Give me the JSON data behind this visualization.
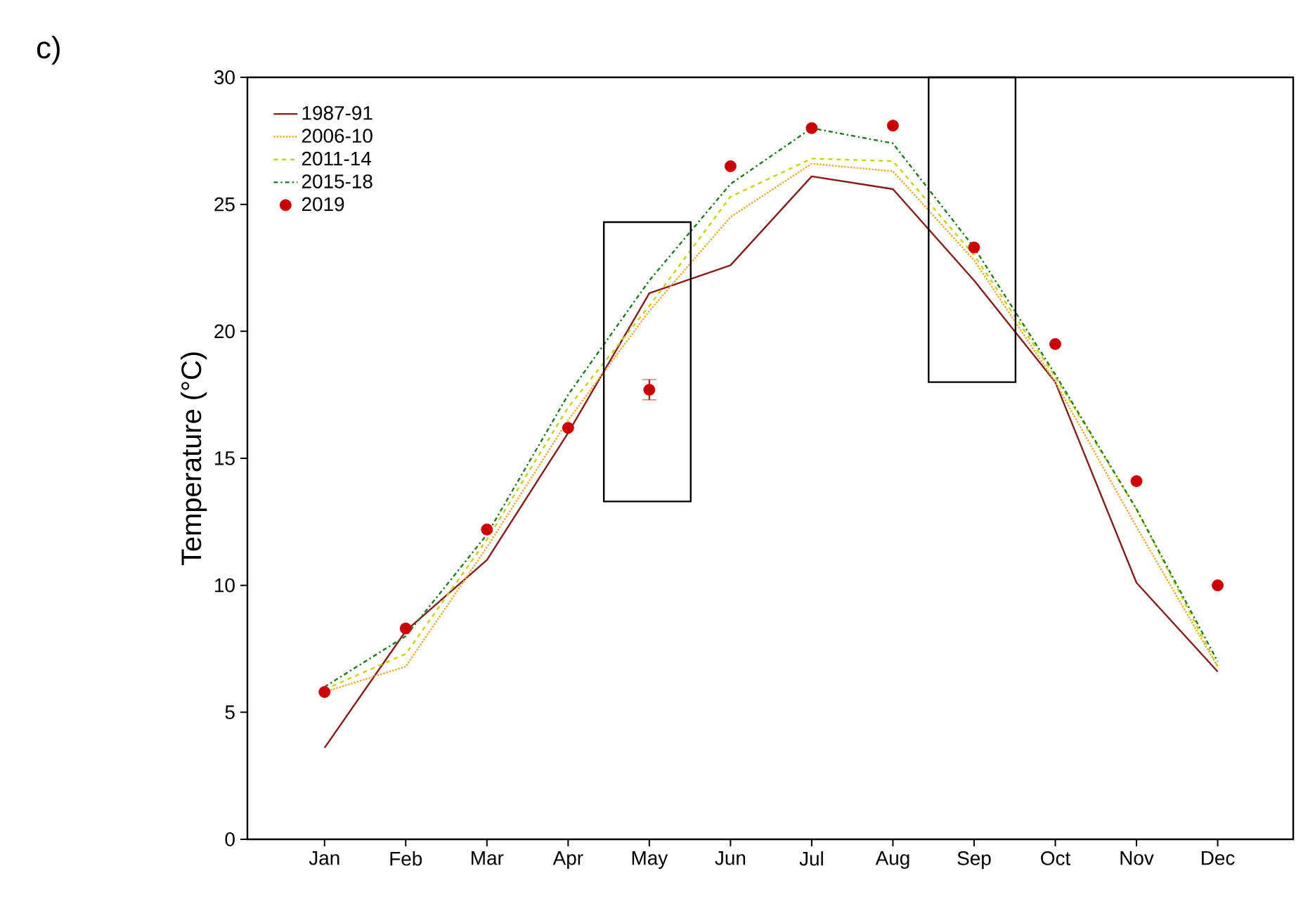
{
  "chart_data": {
    "type": "line",
    "ylabel": "Temperature (°C)",
    "annotations": [
      "c)"
    ],
    "categories": [
      "Jan",
      "Feb",
      "Mar",
      "Apr",
      "May",
      "Jun",
      "Jul",
      "Aug",
      "Sep",
      "Oct",
      "Nov",
      "Dec"
    ],
    "series": [
      {
        "name": "1987-91",
        "color": "#8b1a1a",
        "line_style": "solid",
        "values": [
          3.6,
          8.2,
          11.0,
          16.0,
          21.5,
          22.6,
          26.1,
          25.6,
          22.0,
          18.0,
          10.1,
          6.6
        ]
      },
      {
        "name": "2006-10",
        "color": "#f5a623",
        "line_style": "dotted",
        "values": [
          5.8,
          6.8,
          11.5,
          16.5,
          20.8,
          24.5,
          26.6,
          26.3,
          22.8,
          18.0,
          12.3,
          6.8
        ]
      },
      {
        "name": "2011-14",
        "color": "#c8d400",
        "line_style": "dashed",
        "values": [
          5.9,
          7.3,
          11.8,
          17.0,
          21.0,
          25.3,
          26.8,
          26.7,
          23.0,
          18.2,
          13.0,
          6.8
        ]
      },
      {
        "name": "2015-18",
        "color": "#1e7a1e",
        "line_style": "dashdot",
        "values": [
          6.0,
          8.0,
          12.0,
          17.5,
          22.0,
          25.8,
          28.0,
          27.4,
          23.3,
          18.3,
          13.0,
          7.0
        ]
      },
      {
        "name": "2019",
        "type": "scatter",
        "marker": "circle",
        "color": "#cc0000",
        "values": [
          5.8,
          8.3,
          12.2,
          16.2,
          17.7,
          26.5,
          28.0,
          28.1,
          23.3,
          19.5,
          14.1,
          10.0
        ],
        "errors": [
          null,
          null,
          null,
          null,
          0.4,
          null,
          null,
          null,
          null,
          null,
          null,
          null
        ]
      }
    ],
    "ylim": [
      0,
      30
    ],
    "yticks": [
      0,
      5,
      10,
      15,
      20,
      25,
      30
    ],
    "grid": false,
    "legend": "top left"
  }
}
